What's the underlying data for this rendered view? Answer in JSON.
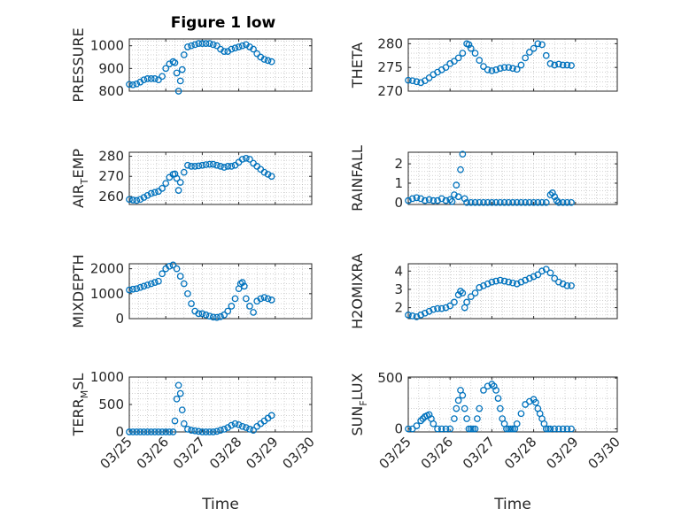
{
  "figure_title": "Figure 1 low",
  "x_axis_label": "Time",
  "x_tick_labels": [
    "03/25",
    "03/26",
    "03/27",
    "03/28",
    "03/29",
    "03/30"
  ],
  "colors": {
    "marker": "#0072BD",
    "axis": "#262626",
    "grid": "#b5b5b5"
  },
  "chart_data": [
    {
      "type": "scatter",
      "title": "Figure 1 low",
      "ylabel": "PRESSURE",
      "ylim": [
        800,
        1030
      ],
      "yticks": [
        800,
        900,
        1000
      ],
      "ytick_labels": [
        "800",
        "900",
        "1000"
      ],
      "xlim": [
        25,
        30
      ],
      "xtick_labels": [],
      "grid": true,
      "series": [
        {
          "x": [
            25.0,
            25.1,
            25.2,
            25.3,
            25.4,
            25.5,
            25.6,
            25.7,
            25.8,
            25.9,
            26.0,
            26.1,
            26.2,
            26.25,
            26.3,
            26.35,
            26.4,
            26.45,
            26.5,
            26.6,
            26.7,
            26.8,
            26.9,
            27.0,
            27.1,
            27.2,
            27.3,
            27.4,
            27.5,
            27.6,
            27.7,
            27.8,
            27.9,
            28.0,
            28.1,
            28.2,
            28.3,
            28.4,
            28.5,
            28.6,
            28.7,
            28.8,
            28.9
          ],
          "y": [
            830,
            828,
            832,
            840,
            850,
            855,
            855,
            855,
            850,
            865,
            900,
            920,
            930,
            925,
            880,
            800,
            845,
            895,
            960,
            995,
            1000,
            1005,
            1010,
            1010,
            1010,
            1010,
            1005,
            1000,
            985,
            975,
            975,
            985,
            990,
            995,
            1000,
            1005,
            995,
            985,
            965,
            950,
            940,
            935,
            930
          ]
        }
      ]
    },
    {
      "type": "scatter",
      "ylabel": "THETA",
      "ylim": [
        270,
        281
      ],
      "yticks": [
        270,
        275,
        280
      ],
      "ytick_labels": [
        "270",
        "275",
        "280"
      ],
      "xlim": [
        25,
        30
      ],
      "xtick_labels": [],
      "grid": true,
      "series": [
        {
          "x": [
            25.0,
            25.1,
            25.2,
            25.3,
            25.4,
            25.5,
            25.6,
            25.7,
            25.8,
            25.9,
            26.0,
            26.1,
            26.2,
            26.3,
            26.4,
            26.45,
            26.5,
            26.6,
            26.7,
            26.8,
            26.9,
            27.0,
            27.1,
            27.2,
            27.3,
            27.4,
            27.5,
            27.6,
            27.7,
            27.8,
            27.9,
            28.0,
            28.1,
            28.2,
            28.3,
            28.4,
            28.5,
            28.6,
            28.7,
            28.8,
            28.9
          ],
          "y": [
            272.3,
            272.2,
            272.0,
            271.8,
            272.2,
            272.8,
            273.5,
            274.0,
            274.5,
            275.0,
            275.8,
            276.3,
            277.0,
            278.0,
            280.0,
            279.8,
            279.0,
            278.0,
            276.5,
            275.2,
            274.5,
            274.3,
            274.5,
            274.8,
            275.0,
            275.0,
            274.8,
            274.6,
            275.5,
            277.0,
            278.2,
            279.0,
            280.0,
            279.8,
            277.5,
            275.8,
            275.5,
            275.7,
            275.5,
            275.5,
            275.4
          ]
        }
      ]
    },
    {
      "type": "scatter",
      "ylabel": "AIR_TEMP",
      "ylim": [
        256,
        282
      ],
      "yticks": [
        260,
        270,
        280
      ],
      "ytick_labels": [
        "260",
        "270",
        "280"
      ],
      "xlim": [
        25,
        30
      ],
      "xtick_labels": [],
      "grid": true,
      "series": [
        {
          "x": [
            25.0,
            25.1,
            25.2,
            25.3,
            25.4,
            25.5,
            25.6,
            25.7,
            25.8,
            25.9,
            26.0,
            26.1,
            26.2,
            26.25,
            26.3,
            26.35,
            26.4,
            26.5,
            26.6,
            26.7,
            26.8,
            26.9,
            27.0,
            27.1,
            27.2,
            27.3,
            27.4,
            27.5,
            27.6,
            27.7,
            27.8,
            27.9,
            28.0,
            28.1,
            28.2,
            28.3,
            28.4,
            28.5,
            28.6,
            28.7,
            28.8,
            28.9
          ],
          "y": [
            258.5,
            258.2,
            258.0,
            258.5,
            259.5,
            260.5,
            261.5,
            262.0,
            262.5,
            264.0,
            266.5,
            269.5,
            271.0,
            271.2,
            269.0,
            263.0,
            267.0,
            272.0,
            275.5,
            275.0,
            275.0,
            275.2,
            275.5,
            275.8,
            276.0,
            276.0,
            275.5,
            275.0,
            274.5,
            275.0,
            275.0,
            275.5,
            277.0,
            278.5,
            279.0,
            278.5,
            276.5,
            275.0,
            273.5,
            272.0,
            271.0,
            270.0
          ]
        }
      ]
    },
    {
      "type": "scatter",
      "ylabel": "RAINFALL",
      "ylim": [
        -0.1,
        2.6
      ],
      "yticks": [
        0,
        1,
        2
      ],
      "ytick_labels": [
        "0",
        "1",
        "2"
      ],
      "xlim": [
        25,
        30
      ],
      "xtick_labels": [],
      "grid": true,
      "series": [
        {
          "x": [
            25.0,
            25.1,
            25.2,
            25.3,
            25.4,
            25.5,
            25.6,
            25.7,
            25.8,
            25.9,
            26.0,
            26.05,
            26.1,
            26.15,
            26.2,
            26.25,
            26.3,
            26.35,
            26.4,
            26.5,
            26.6,
            26.7,
            26.8,
            26.9,
            27.0,
            27.1,
            27.2,
            27.3,
            27.4,
            27.5,
            27.6,
            27.7,
            27.8,
            27.9,
            28.0,
            28.1,
            28.2,
            28.3,
            28.4,
            28.45,
            28.5,
            28.55,
            28.6,
            28.7,
            28.8,
            28.9
          ],
          "y": [
            0.1,
            0.2,
            0.25,
            0.2,
            0.1,
            0.15,
            0.1,
            0.1,
            0.2,
            0.1,
            0.15,
            0.05,
            0.4,
            0.9,
            0.3,
            1.7,
            2.5,
            0.2,
            0,
            0,
            0,
            0,
            0,
            0,
            0,
            0,
            0,
            0,
            0,
            0,
            0,
            0,
            0,
            0,
            0,
            0,
            0,
            0,
            0.4,
            0.5,
            0.3,
            0.1,
            0,
            0,
            0,
            0
          ]
        }
      ]
    },
    {
      "type": "scatter",
      "ylabel": "MIXDEPTH",
      "ylim": [
        0,
        2200
      ],
      "yticks": [
        0,
        1000,
        2000
      ],
      "ytick_labels": [
        "0",
        "1000",
        "2000"
      ],
      "xlim": [
        25,
        30
      ],
      "xtick_labels": [],
      "grid": true,
      "series": [
        {
          "x": [
            25.0,
            25.1,
            25.2,
            25.3,
            25.4,
            25.5,
            25.6,
            25.7,
            25.8,
            25.9,
            26.0,
            26.1,
            26.2,
            26.3,
            26.4,
            26.5,
            26.6,
            26.7,
            26.8,
            26.9,
            27.0,
            27.1,
            27.2,
            27.3,
            27.4,
            27.5,
            27.6,
            27.7,
            27.8,
            27.9,
            28.0,
            28.05,
            28.1,
            28.15,
            28.2,
            28.3,
            28.4,
            28.5,
            28.6,
            28.7,
            28.8,
            28.9
          ],
          "y": [
            1150,
            1180,
            1200,
            1250,
            1300,
            1350,
            1400,
            1450,
            1500,
            1800,
            2000,
            2100,
            2150,
            2000,
            1700,
            1400,
            1000,
            600,
            300,
            200,
            200,
            150,
            100,
            60,
            50,
            80,
            150,
            300,
            500,
            800,
            1200,
            1400,
            1450,
            1300,
            800,
            500,
            250,
            700,
            800,
            850,
            800,
            750
          ]
        }
      ]
    },
    {
      "type": "scatter",
      "ylabel": "H2OMIXRA",
      "ylim": [
        1.4,
        4.4
      ],
      "yticks": [
        2,
        3,
        4
      ],
      "ytick_labels": [
        "2",
        "3",
        "4"
      ],
      "xlim": [
        25,
        30
      ],
      "xtick_labels": [],
      "grid": true,
      "series": [
        {
          "x": [
            25.0,
            25.1,
            25.2,
            25.3,
            25.4,
            25.5,
            25.6,
            25.7,
            25.8,
            25.9,
            26.0,
            26.1,
            26.2,
            26.25,
            26.3,
            26.35,
            26.4,
            26.5,
            26.6,
            26.7,
            26.8,
            26.9,
            27.0,
            27.1,
            27.2,
            27.3,
            27.4,
            27.5,
            27.6,
            27.7,
            27.8,
            27.9,
            28.0,
            28.1,
            28.2,
            28.3,
            28.4,
            28.5,
            28.6,
            28.7,
            28.8,
            28.9
          ],
          "y": [
            1.6,
            1.55,
            1.5,
            1.6,
            1.7,
            1.8,
            1.9,
            1.95,
            1.95,
            2.0,
            2.1,
            2.3,
            2.7,
            2.9,
            2.8,
            2.0,
            2.3,
            2.6,
            2.8,
            3.1,
            3.2,
            3.3,
            3.4,
            3.45,
            3.5,
            3.45,
            3.4,
            3.35,
            3.3,
            3.4,
            3.5,
            3.6,
            3.7,
            3.8,
            4.0,
            4.1,
            3.9,
            3.6,
            3.4,
            3.3,
            3.2,
            3.2
          ]
        }
      ]
    },
    {
      "type": "scatter",
      "ylabel": "TERR_MSL",
      "ylim": [
        0,
        1000
      ],
      "yticks": [
        0,
        500,
        1000
      ],
      "ytick_labels": [
        "0",
        "500",
        "1000"
      ],
      "xlim": [
        25,
        30
      ],
      "xtick_labels": [
        "03/25",
        "03/26",
        "03/27",
        "03/28",
        "03/29",
        "03/30"
      ],
      "xlabel": "Time",
      "grid": true,
      "series": [
        {
          "x": [
            25.0,
            25.1,
            25.2,
            25.3,
            25.4,
            25.5,
            25.6,
            25.7,
            25.8,
            25.9,
            26.0,
            26.1,
            26.2,
            26.25,
            26.3,
            26.35,
            26.4,
            26.45,
            26.5,
            26.6,
            26.7,
            26.8,
            26.9,
            27.0,
            27.1,
            27.2,
            27.3,
            27.4,
            27.5,
            27.6,
            27.7,
            27.8,
            27.9,
            28.0,
            28.1,
            28.2,
            28.3,
            28.4,
            28.5,
            28.6,
            28.7,
            28.8,
            28.9
          ],
          "y": [
            0,
            0,
            0,
            0,
            0,
            0,
            0,
            0,
            0,
            0,
            0,
            0,
            0,
            200,
            600,
            850,
            700,
            400,
            150,
            50,
            30,
            20,
            10,
            0,
            0,
            0,
            0,
            10,
            30,
            50,
            80,
            120,
            150,
            130,
            100,
            80,
            50,
            30,
            100,
            150,
            200,
            250,
            300
          ]
        }
      ]
    },
    {
      "type": "scatter",
      "ylabel": "SUN_FLUX",
      "ylim": [
        -30,
        510
      ],
      "yticks": [
        0,
        500
      ],
      "ytick_labels": [
        "0",
        "500"
      ],
      "xlim": [
        25,
        30
      ],
      "xtick_labels": [
        "03/25",
        "03/26",
        "03/27",
        "03/28",
        "03/29",
        "03/30"
      ],
      "xlabel": "Time",
      "grid": true,
      "series": [
        {
          "x": [
            25.0,
            25.1,
            25.2,
            25.3,
            25.35,
            25.4,
            25.45,
            25.5,
            25.55,
            25.6,
            25.7,
            25.8,
            25.9,
            26.0,
            26.1,
            26.15,
            26.2,
            26.25,
            26.3,
            26.35,
            26.4,
            26.45,
            26.5,
            26.55,
            26.6,
            26.65,
            26.7,
            26.8,
            26.9,
            27.0,
            27.05,
            27.1,
            27.15,
            27.2,
            27.25,
            27.3,
            27.35,
            27.4,
            27.45,
            27.5,
            27.55,
            27.6,
            27.7,
            27.8,
            27.9,
            28.0,
            28.05,
            28.1,
            28.15,
            28.2,
            28.25,
            28.3,
            28.35,
            28.4,
            28.5,
            28.6,
            28.7,
            28.8,
            28.9
          ],
          "y": [
            0,
            0,
            30,
            80,
            100,
            120,
            130,
            140,
            100,
            50,
            0,
            0,
            0,
            0,
            100,
            200,
            280,
            380,
            330,
            200,
            100,
            0,
            0,
            0,
            0,
            100,
            200,
            380,
            420,
            440,
            420,
            380,
            300,
            200,
            100,
            50,
            0,
            0,
            0,
            0,
            0,
            50,
            150,
            240,
            270,
            290,
            260,
            200,
            150,
            100,
            50,
            0,
            0,
            0,
            0,
            0,
            0,
            0,
            0
          ]
        }
      ]
    }
  ]
}
